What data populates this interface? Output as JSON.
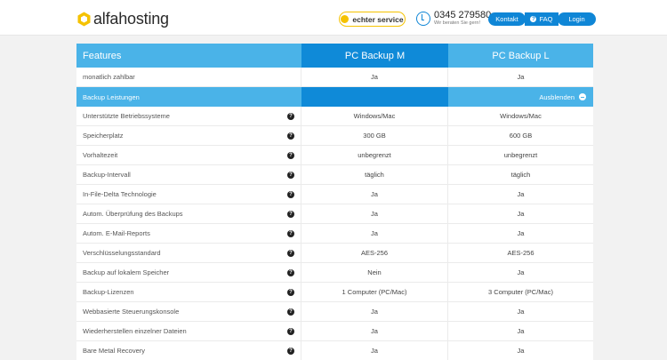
{
  "header": {
    "logo_text": "alfahosting",
    "service_badge": "echter service",
    "phone_number": "0345 279580",
    "phone_sub": "Wir beraten Sie gern!",
    "nav": {
      "kontakt": "Kontakt",
      "faq": "FAQ",
      "login": "Login"
    }
  },
  "table": {
    "head": {
      "features": "Features",
      "plan_m": "PC Backup M",
      "plan_l": "PC Backup L"
    },
    "row0": {
      "label": "monatlich zahlbar",
      "m": "Ja",
      "l": "Ja"
    },
    "section": {
      "label": "Backup Leistungen",
      "toggle": "Ausblenden"
    },
    "rows": [
      {
        "label": "Unterstützte Betriebssysteme",
        "m": "Windows/Mac",
        "l": "Windows/Mac"
      },
      {
        "label": "Speicherplatz",
        "m": "300 GB",
        "l": "600 GB"
      },
      {
        "label": "Vorhaltezeit",
        "m": "unbegrenzt",
        "l": "unbegrenzt"
      },
      {
        "label": "Backup-Intervall",
        "m": "täglich",
        "l": "täglich"
      },
      {
        "label": "In-File-Delta Technologie",
        "m": "Ja",
        "l": "Ja"
      },
      {
        "label": "Autom. Überprüfung des Backups",
        "m": "Ja",
        "l": "Ja"
      },
      {
        "label": "Autom. E-Mail-Reports",
        "m": "Ja",
        "l": "Ja"
      },
      {
        "label": "Verschlüsselungsstandard",
        "m": "AES-256",
        "l": "AES-256"
      },
      {
        "label": "Backup auf lokalem Speicher",
        "m": "Nein",
        "l": "Ja"
      },
      {
        "label": "Backup-Lizenzen",
        "m": "1 Computer (PC/Mac)",
        "l": "3 Computer (PC/Mac)"
      },
      {
        "label": "Webbasierte Steuerungskonsole",
        "m": "Ja",
        "l": "Ja"
      },
      {
        "label": "Wiederherstellen einzelner Dateien",
        "m": "Ja",
        "l": "Ja"
      },
      {
        "label": "Bare Metal Recovery",
        "m": "Ja",
        "l": "Ja"
      }
    ]
  },
  "colors": {
    "accent": "#0f86d6",
    "light_blue": "#4ab3e8",
    "yellow": "#f5c200"
  },
  "icons": {
    "help": "question-circle-icon",
    "toggle": "minus-circle-icon"
  }
}
